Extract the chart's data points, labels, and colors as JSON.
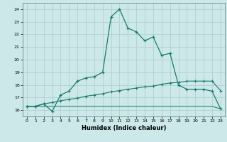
{
  "title": "",
  "xlabel": "Humidex (Indice chaleur)",
  "bg_color": "#cce8e8",
  "line_color": "#1a7a6e",
  "grid_color": "#aacccc",
  "xmin": 0,
  "xmax": 23,
  "ymin": 15.5,
  "ymax": 24.5,
  "yticks": [
    16,
    17,
    18,
    19,
    20,
    21,
    22,
    23,
    24
  ],
  "xticks": [
    0,
    1,
    2,
    3,
    4,
    5,
    6,
    7,
    8,
    9,
    10,
    11,
    12,
    13,
    14,
    15,
    16,
    17,
    18,
    19,
    20,
    21,
    22,
    23
  ],
  "line1_x": [
    0,
    1,
    2,
    3,
    4,
    5,
    6,
    7,
    8,
    9,
    10,
    11,
    12,
    13,
    14,
    15,
    16,
    17,
    18,
    19,
    20,
    21,
    22,
    23
  ],
  "line1_y": [
    16.3,
    16.3,
    16.5,
    15.9,
    17.2,
    17.5,
    18.3,
    18.55,
    18.65,
    19.0,
    23.4,
    24.0,
    22.5,
    22.2,
    21.5,
    21.8,
    20.35,
    20.5,
    18.0,
    17.65,
    17.65,
    17.65,
    17.5,
    16.1
  ],
  "line2_x": [
    0,
    1,
    2,
    3,
    4,
    5,
    6,
    7,
    8,
    9,
    10,
    11,
    12,
    13,
    14,
    15,
    16,
    17,
    18,
    19,
    20,
    21,
    22,
    23
  ],
  "line2_y": [
    16.3,
    16.3,
    16.5,
    16.6,
    16.75,
    16.85,
    16.95,
    17.1,
    17.2,
    17.3,
    17.45,
    17.55,
    17.65,
    17.75,
    17.85,
    17.9,
    18.05,
    18.15,
    18.2,
    18.3,
    18.3,
    18.3,
    18.3,
    17.55
  ],
  "line3_x": [
    0,
    1,
    2,
    3,
    4,
    5,
    6,
    7,
    8,
    9,
    10,
    11,
    12,
    13,
    14,
    15,
    16,
    17,
    18,
    19,
    20,
    21,
    22,
    23
  ],
  "line3_y": [
    16.3,
    16.3,
    16.3,
    16.3,
    16.3,
    16.3,
    16.3,
    16.3,
    16.3,
    16.3,
    16.3,
    16.3,
    16.3,
    16.3,
    16.3,
    16.3,
    16.3,
    16.3,
    16.3,
    16.3,
    16.3,
    16.3,
    16.3,
    16.1
  ]
}
